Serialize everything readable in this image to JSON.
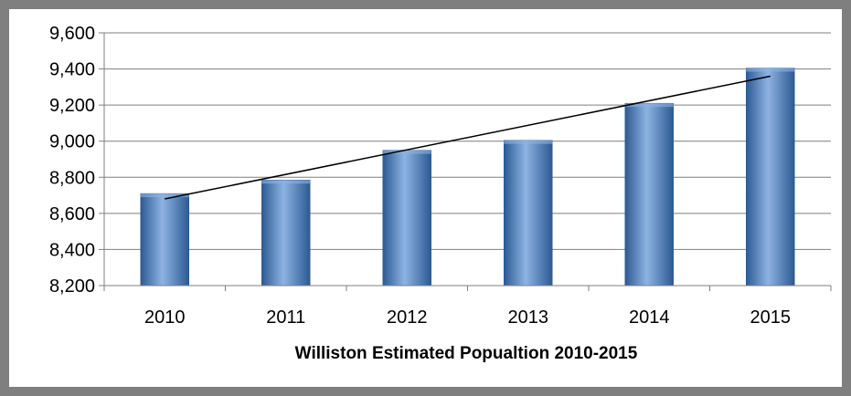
{
  "chart_data": {
    "type": "bar",
    "title": "",
    "xlabel": "Williston Estimated Popualtion 2010-2015",
    "ylabel": "",
    "categories": [
      "2010",
      "2011",
      "2012",
      "2013",
      "2014",
      "2015"
    ],
    "values": [
      8710,
      8785,
      8950,
      9005,
      9210,
      9405
    ],
    "ylim": [
      8200,
      9600
    ],
    "yticks": [
      8200,
      8400,
      8600,
      8800,
      9000,
      9200,
      9400,
      9600
    ],
    "ytick_labels": [
      "8,200",
      "8,400",
      "8,600",
      "8,800",
      "9,000",
      "9,200",
      "9,400",
      "9,600"
    ],
    "trendline": {
      "type": "linear",
      "start": 8680,
      "end": 9360
    },
    "grid": true,
    "legend": "none",
    "colors": {
      "bar": "#4f81bd",
      "bar_dark": "#2c5a93",
      "bar_light": "#8db3e2",
      "grid": "#7f7f7f",
      "frame": "#7f7f7f",
      "trendline": "#000000"
    }
  }
}
